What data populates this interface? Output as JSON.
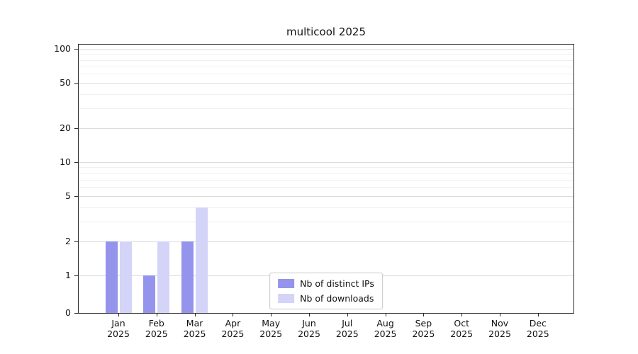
{
  "title": "multicool 2025",
  "chart_data": {
    "type": "bar",
    "title": "multicool 2025",
    "categories": [
      "Jan",
      "Feb",
      "Mar",
      "Apr",
      "May",
      "Jun",
      "Jul",
      "Aug",
      "Sep",
      "Oct",
      "Nov",
      "Dec"
    ],
    "year": "2025",
    "series": [
      {
        "name": "Nb of distinct IPs",
        "color": "#9494ec",
        "values": [
          2,
          1,
          2,
          0,
          0,
          0,
          0,
          0,
          0,
          0,
          0,
          0
        ]
      },
      {
        "name": "Nb of downloads",
        "color": "#d4d4f8",
        "values": [
          2,
          2,
          4,
          0,
          0,
          0,
          0,
          0,
          0,
          0,
          0,
          0
        ]
      }
    ],
    "yticks": [
      0,
      1,
      2,
      5,
      10,
      20,
      50,
      100
    ],
    "minor_gridline_values": [
      3,
      4,
      6,
      7,
      8,
      9,
      30,
      40,
      60,
      70,
      80,
      90
    ],
    "scale": "symlog",
    "ylim": [
      0,
      110
    ],
    "grid": true,
    "legend_position": "bottom-center"
  }
}
